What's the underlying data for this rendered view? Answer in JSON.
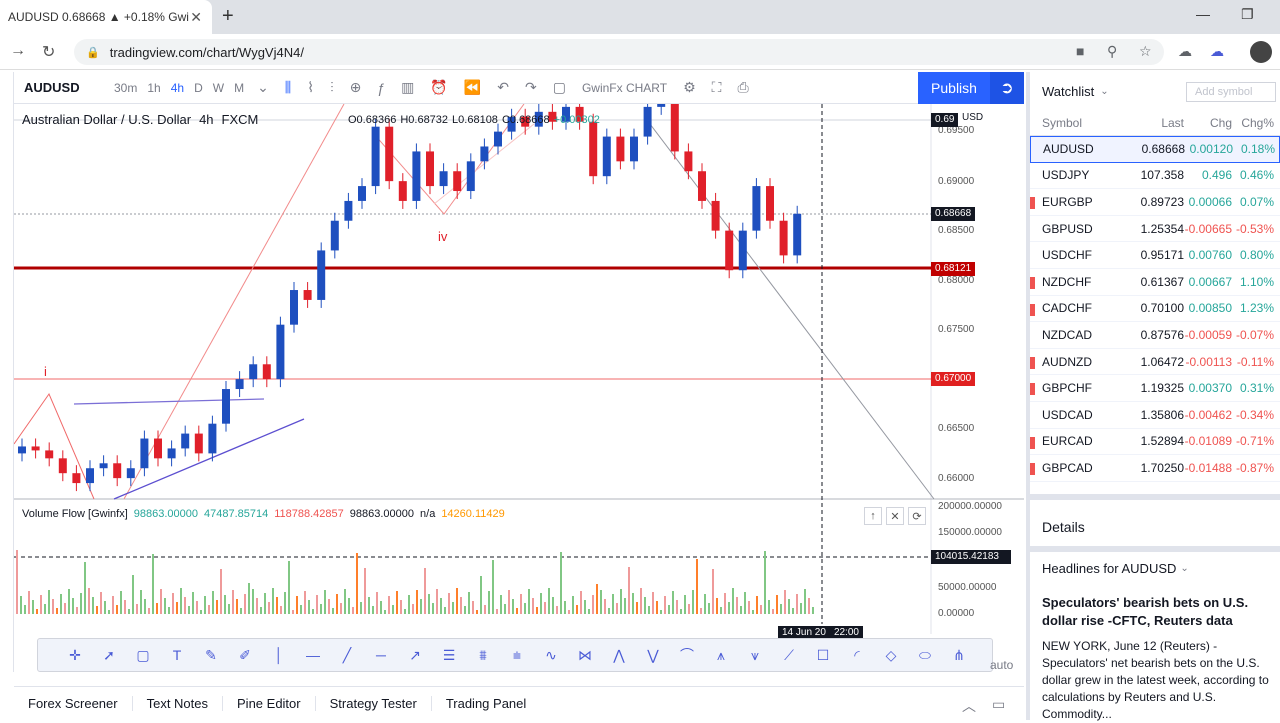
{
  "browser": {
    "tab_title": "AUDUSD 0.68668 ▲ +0.18% Gwi",
    "url": "tradingview.com/chart/WygVj4N4/"
  },
  "toolbar": {
    "symbol": "AUDUSD",
    "intervals": [
      "30m",
      "1h",
      "4h",
      "D",
      "W",
      "M"
    ],
    "active_interval": "4h",
    "layout_name": "GwinFx CHART",
    "publish_label": "Publish"
  },
  "legend": {
    "title": "Australian Dollar / U.S. Dollar",
    "interval": "4h",
    "exchange": "FXCM",
    "open": "O0.68366",
    "high": "H0.68732",
    "low": "L0.68108",
    "close": "C0.68668",
    "change": "+0.00302"
  },
  "chart_annotations": {
    "wave_iv": "iv",
    "wave_i": "i",
    "usd_label": "USD"
  },
  "price_axis": {
    "labels": [
      "0.69500",
      "0.69000",
      "0.68500",
      "0.68000",
      "0.67500",
      "0.66500",
      "0.66000"
    ],
    "current_price": "0.68668",
    "line_red": "0.68121",
    "line_pink": "0.67000",
    "top_tag": "0.69"
  },
  "volume": {
    "name": "Volume Flow [Gwinfx]",
    "values": [
      "98863.00000",
      "47487.85714",
      "118788.42857",
      "98863.00000",
      "n/a",
      "14260.11429"
    ],
    "axis_labels": [
      "200000.00000",
      "150000.00000",
      "50000.00000",
      "0.00000"
    ],
    "crosshair_value": "104015.42183"
  },
  "time_axis": {
    "crosshair_date": "14 Jun 20",
    "crosshair_time": "22:00"
  },
  "bottom_tabs": [
    "Forex Screener",
    "Text Notes",
    "Pine Editor",
    "Strategy Tester",
    "Trading Panel"
  ],
  "auto_label": "auto",
  "watchlist": {
    "title": "Watchlist",
    "add_placeholder": "Add symbol",
    "columns": [
      "Symbol",
      "Last",
      "Chg",
      "Chg%"
    ],
    "rows": [
      {
        "symbol": "AUDUSD",
        "last": "0.68668",
        "chg": "0.00120",
        "pct": "0.18%",
        "dir": "up",
        "flag": false
      },
      {
        "symbol": "USDJPY",
        "last": "107.358",
        "chg": "0.496",
        "pct": "0.46%",
        "dir": "up",
        "flag": false
      },
      {
        "symbol": "EURGBP",
        "last": "0.89723",
        "chg": "0.00066",
        "pct": "0.07%",
        "dir": "up",
        "flag": true
      },
      {
        "symbol": "GBPUSD",
        "last": "1.25354",
        "chg": "-0.00665",
        "pct": "-0.53%",
        "dir": "dn",
        "flag": false
      },
      {
        "symbol": "USDCHF",
        "last": "0.95171",
        "chg": "0.00760",
        "pct": "0.80%",
        "dir": "up",
        "flag": false
      },
      {
        "symbol": "NZDCHF",
        "last": "0.61367",
        "chg": "0.00667",
        "pct": "1.10%",
        "dir": "up",
        "flag": true
      },
      {
        "symbol": "CADCHF",
        "last": "0.70100",
        "chg": "0.00850",
        "pct": "1.23%",
        "dir": "up",
        "flag": true
      },
      {
        "symbol": "NZDCAD",
        "last": "0.87576",
        "chg": "-0.00059",
        "pct": "-0.07%",
        "dir": "dn",
        "flag": false
      },
      {
        "symbol": "AUDNZD",
        "last": "1.06472",
        "chg": "-0.00113",
        "pct": "-0.11%",
        "dir": "dn",
        "flag": true
      },
      {
        "symbol": "GBPCHF",
        "last": "1.19325",
        "chg": "0.00370",
        "pct": "0.31%",
        "dir": "up",
        "flag": true
      },
      {
        "symbol": "USDCAD",
        "last": "1.35806",
        "chg": "-0.00462",
        "pct": "-0.34%",
        "dir": "dn",
        "flag": false
      },
      {
        "symbol": "EURCAD",
        "last": "1.52894",
        "chg": "-0.01089",
        "pct": "-0.71%",
        "dir": "dn",
        "flag": true
      },
      {
        "symbol": "GBPCAD",
        "last": "1.70250",
        "chg": "-0.01488",
        "pct": "-0.87%",
        "dir": "dn",
        "flag": true
      }
    ]
  },
  "details_label": "Details",
  "headlines": {
    "title": "Headlines for AUDUSD",
    "news_title": "Speculators' bearish bets on U.S. dollar rise -CFTC, Reuters data",
    "news_body": "NEW YORK, June 12 (Reuters) - Speculators' net bearish bets on the U.S. dollar grew in the latest week, according to calculations by Reuters and U.S. Commodity..."
  },
  "colors": {
    "accent": "#2962ff",
    "up": "#26a69a",
    "down": "#ef5350",
    "bull_candle": "#1e4fbf",
    "bear_candle": "#e0202a"
  },
  "candles_shape": [
    {
      "o": 0.6625,
      "c": 0.6632
    },
    {
      "o": 0.6632,
      "c": 0.6628
    },
    {
      "o": 0.6628,
      "c": 0.662
    },
    {
      "o": 0.662,
      "c": 0.6605
    },
    {
      "o": 0.6605,
      "c": 0.6595
    },
    {
      "o": 0.6595,
      "c": 0.661
    },
    {
      "o": 0.661,
      "c": 0.6615
    },
    {
      "o": 0.6615,
      "c": 0.66
    },
    {
      "o": 0.66,
      "c": 0.661
    },
    {
      "o": 0.661,
      "c": 0.664
    },
    {
      "o": 0.664,
      "c": 0.662
    },
    {
      "o": 0.662,
      "c": 0.663
    },
    {
      "o": 0.663,
      "c": 0.6645
    },
    {
      "o": 0.6645,
      "c": 0.6625
    },
    {
      "o": 0.6625,
      "c": 0.6655
    },
    {
      "o": 0.6655,
      "c": 0.669
    },
    {
      "o": 0.669,
      "c": 0.67
    },
    {
      "o": 0.67,
      "c": 0.6715
    },
    {
      "o": 0.6715,
      "c": 0.67
    },
    {
      "o": 0.67,
      "c": 0.6755
    },
    {
      "o": 0.6755,
      "c": 0.679
    },
    {
      "o": 0.679,
      "c": 0.678
    },
    {
      "o": 0.678,
      "c": 0.683
    },
    {
      "o": 0.683,
      "c": 0.686
    },
    {
      "o": 0.686,
      "c": 0.688
    },
    {
      "o": 0.688,
      "c": 0.6895
    },
    {
      "o": 0.6895,
      "c": 0.6955
    },
    {
      "o": 0.6955,
      "c": 0.69
    },
    {
      "o": 0.69,
      "c": 0.688
    },
    {
      "o": 0.688,
      "c": 0.693
    },
    {
      "o": 0.693,
      "c": 0.6895
    },
    {
      "o": 0.6895,
      "c": 0.691
    },
    {
      "o": 0.691,
      "c": 0.689
    },
    {
      "o": 0.689,
      "c": 0.692
    },
    {
      "o": 0.692,
      "c": 0.6935
    },
    {
      "o": 0.6935,
      "c": 0.695
    },
    {
      "o": 0.695,
      "c": 0.6965
    },
    {
      "o": 0.6965,
      "c": 0.6955
    },
    {
      "o": 0.6955,
      "c": 0.697
    },
    {
      "o": 0.697,
      "c": 0.696
    },
    {
      "o": 0.696,
      "c": 0.6975
    },
    {
      "o": 0.6975,
      "c": 0.696
    },
    {
      "o": 0.696,
      "c": 0.6905
    },
    {
      "o": 0.6905,
      "c": 0.6945
    },
    {
      "o": 0.6945,
      "c": 0.692
    },
    {
      "o": 0.692,
      "c": 0.6945
    },
    {
      "o": 0.6945,
      "c": 0.6975
    },
    {
      "o": 0.6975,
      "c": 0.6985
    },
    {
      "o": 0.6985,
      "c": 0.693
    },
    {
      "o": 0.693,
      "c": 0.691
    },
    {
      "o": 0.691,
      "c": 0.688
    },
    {
      "o": 0.688,
      "c": 0.685
    },
    {
      "o": 0.685,
      "c": 0.681
    },
    {
      "o": 0.681,
      "c": 0.685
    },
    {
      "o": 0.685,
      "c": 0.6895
    },
    {
      "o": 0.6895,
      "c": 0.686
    },
    {
      "o": 0.686,
      "c": 0.6825
    },
    {
      "o": 0.6825,
      "c": 0.6867
    }
  ]
}
